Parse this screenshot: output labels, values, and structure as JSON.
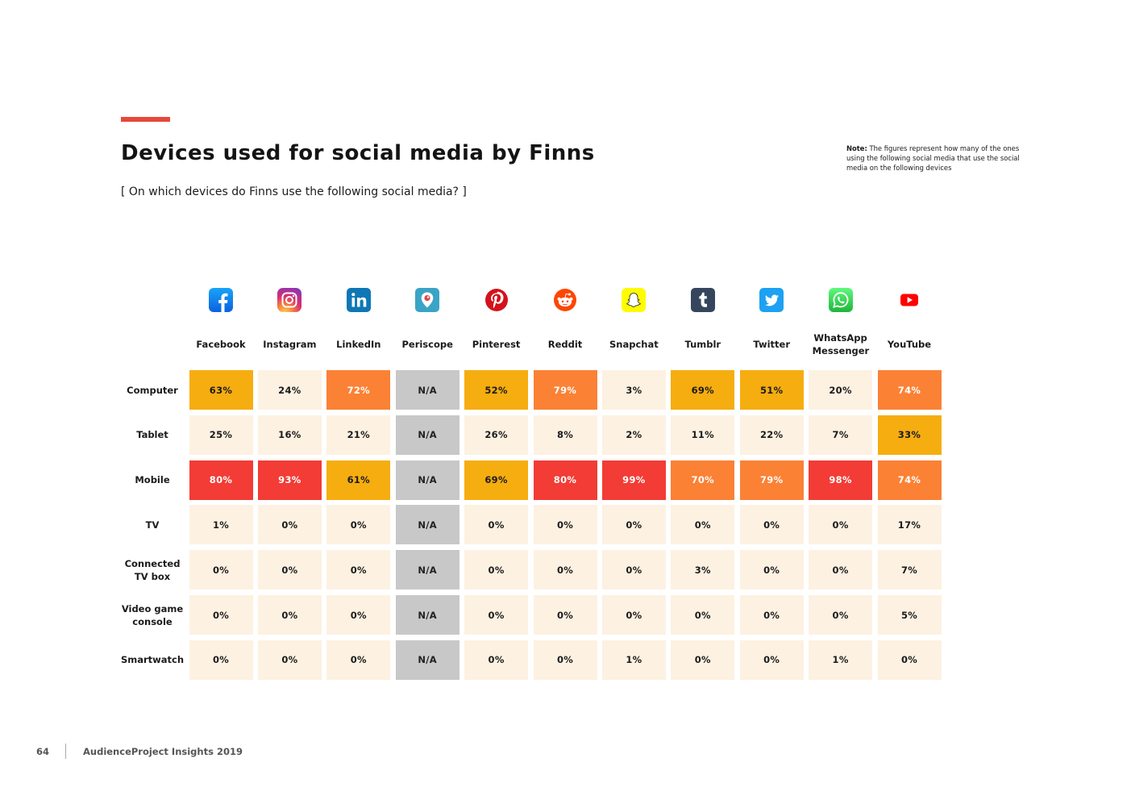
{
  "header": {
    "title": "Devices used for social media by Finns",
    "subtitle": "[ On which devices do Finns use the following social media? ]",
    "note_label": "Note:",
    "note_text": "The figures represent how many of the ones using the following social media that use the social media on the following devices"
  },
  "footer": {
    "page_number": "64",
    "publication": "AudienceProject Insights 2019"
  },
  "colors": {
    "accent": "#e8473b",
    "pale": "#fdf1e2",
    "na": "#c8c8c8",
    "amber": "#f6ad10",
    "orange": "#fb8135",
    "red": "#f23c35"
  },
  "chart_data": {
    "type": "table",
    "title": "Devices used for social media by Finns",
    "columns": [
      {
        "name": "Facebook",
        "icon": "facebook-icon"
      },
      {
        "name": "Instagram",
        "icon": "instagram-icon"
      },
      {
        "name": "LinkedIn",
        "icon": "linkedin-icon"
      },
      {
        "name": "Periscope",
        "icon": "periscope-icon"
      },
      {
        "name": "Pinterest",
        "icon": "pinterest-icon"
      },
      {
        "name": "Reddit",
        "icon": "reddit-icon"
      },
      {
        "name": "Snapchat",
        "icon": "snapchat-icon"
      },
      {
        "name": "Tumblr",
        "icon": "tumblr-icon"
      },
      {
        "name": "Twitter",
        "icon": "twitter-icon"
      },
      {
        "name": "WhatsApp Messenger",
        "icon": "whatsapp-icon"
      },
      {
        "name": "YouTube",
        "icon": "youtube-icon"
      }
    ],
    "rows": [
      {
        "name": "Computer",
        "values": [
          "63%",
          "24%",
          "72%",
          "N/A",
          "52%",
          "79%",
          "3%",
          "69%",
          "51%",
          "20%",
          "74%"
        ]
      },
      {
        "name": "Tablet",
        "values": [
          "25%",
          "16%",
          "21%",
          "N/A",
          "26%",
          "8%",
          "2%",
          "11%",
          "22%",
          "7%",
          "33%"
        ]
      },
      {
        "name": "Mobile",
        "values": [
          "80%",
          "93%",
          "61%",
          "N/A",
          "69%",
          "80%",
          "99%",
          "70%",
          "79%",
          "98%",
          "74%"
        ]
      },
      {
        "name": "TV",
        "values": [
          "1%",
          "0%",
          "0%",
          "N/A",
          "0%",
          "0%",
          "0%",
          "0%",
          "0%",
          "0%",
          "17%"
        ]
      },
      {
        "name": "Connected TV box",
        "values": [
          "0%",
          "0%",
          "0%",
          "N/A",
          "0%",
          "0%",
          "0%",
          "3%",
          "0%",
          "0%",
          "7%"
        ]
      },
      {
        "name": "Video game console",
        "values": [
          "0%",
          "0%",
          "0%",
          "N/A",
          "0%",
          "0%",
          "0%",
          "0%",
          "0%",
          "0%",
          "5%"
        ]
      },
      {
        "name": "Smartwatch",
        "values": [
          "0%",
          "0%",
          "0%",
          "N/A",
          "0%",
          "0%",
          "1%",
          "0%",
          "0%",
          "1%",
          "0%"
        ]
      }
    ]
  }
}
